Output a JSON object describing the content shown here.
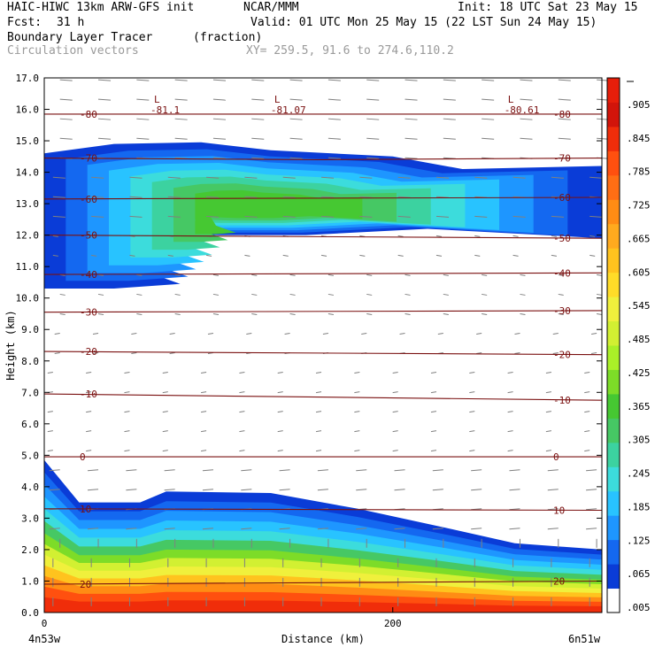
{
  "header": {
    "model": "HAIC-HIWC 13km ARW-GFS init",
    "org": "NCAR/MMM",
    "init": "Init: 18 UTC Sat 23 May 15",
    "fcst_label": "Fcst:",
    "fcst_value": "31 h",
    "valid": "Valid: 01 UTC Mon 25 May 15 (22 LST Sun 24 May 15)",
    "field_name": "Boundary Layer Tracer",
    "field_units": "(fraction)",
    "vector_label": "Circulation vectors",
    "xy_label": "XY= 259.5, 91.6 to 274.6,110.2"
  },
  "colors": {
    "contour_line": "#7a1010",
    "vectors": "#808080",
    "frame": "#000000"
  },
  "chart_data": {
    "type": "heatmap",
    "ylabel": "Height (km)",
    "xlabel": "Distance (km)",
    "x_endpoints": [
      "4n53w",
      "6n51w"
    ],
    "x_range": [
      0,
      320
    ],
    "x_ticks": [
      0,
      200
    ],
    "x_tick_labels": [
      "0",
      "200"
    ],
    "y_range": [
      0,
      17
    ],
    "y_ticks": [
      "0.0",
      "1.0",
      "2.0",
      "3.0",
      "4.0",
      "5.0",
      "6.0",
      "7.0",
      "8.0",
      "9.0",
      "10.0",
      "11.0",
      "12.0",
      "13.0",
      "14.0",
      "15.0",
      "16.0",
      "17.0"
    ],
    "colorbar_labels": [
      ".005",
      ".065",
      ".125",
      ".185",
      ".245",
      ".305",
      ".365",
      ".425",
      ".485",
      ".545",
      ".605",
      ".665",
      ".725",
      ".785",
      ".845",
      ".905"
    ],
    "colorbar_colors": [
      "#ffffff",
      "#0a3cd7",
      "#1468f0",
      "#1e96ff",
      "#28c3ff",
      "#3cdcdc",
      "#3cd2a0",
      "#46c864",
      "#46c832",
      "#7ddc28",
      "#aaf028",
      "#d2f032",
      "#f0f03c",
      "#ffdc28",
      "#ffc31e",
      "#ffaa1e",
      "#ff8c14",
      "#ff6e14",
      "#ff500f",
      "#f02d0a",
      "#d2140a",
      "#e61e0a"
    ],
    "series": [
      {
        "name": "-80",
        "values": [
          [
            0,
            15.85
          ],
          [
            320,
            15.85
          ]
        ]
      },
      {
        "name": "-70",
        "values": [
          [
            0,
            14.45
          ],
          [
            160,
            14.4
          ],
          [
            320,
            14.45
          ]
        ]
      },
      {
        "name": "-60",
        "values": [
          [
            0,
            13.15
          ],
          [
            320,
            13.2
          ]
        ]
      },
      {
        "name": "-50",
        "values": [
          [
            0,
            12.0
          ],
          [
            320,
            11.9
          ]
        ]
      },
      {
        "name": "-40",
        "values": [
          [
            0,
            10.75
          ],
          [
            320,
            10.8
          ]
        ]
      },
      {
        "name": "-30",
        "values": [
          [
            0,
            9.55
          ],
          [
            320,
            9.6
          ]
        ]
      },
      {
        "name": "-20",
        "values": [
          [
            0,
            8.3
          ],
          [
            320,
            8.2
          ]
        ]
      },
      {
        "name": "-10",
        "values": [
          [
            0,
            6.95
          ],
          [
            320,
            6.75
          ]
        ]
      },
      {
        "name": "0",
        "values": [
          [
            0,
            4.95
          ],
          [
            320,
            4.95
          ]
        ]
      },
      {
        "name": "10",
        "values": [
          [
            0,
            3.3
          ],
          [
            320,
            3.25
          ]
        ]
      },
      {
        "name": "20",
        "values": [
          [
            0,
            0.9
          ],
          [
            320,
            1.0
          ]
        ]
      }
    ],
    "lows": [
      {
        "label": "L",
        "value": "-81.1",
        "x": 63,
        "y": 16.05
      },
      {
        "label": "L",
        "value": "-81.07",
        "x": 132,
        "y": 16.05
      },
      {
        "label": "L",
        "value": "-80.61",
        "x": 266,
        "y": 16.05
      }
    ],
    "tracer_fraction_region_upper": {
      "top_km": [
        [
          0,
          14.6
        ],
        [
          40,
          14.9
        ],
        [
          90,
          14.95
        ],
        [
          130,
          14.7
        ],
        [
          200,
          14.5
        ],
        [
          240,
          14.1
        ],
        [
          320,
          14.2
        ]
      ],
      "bottom_km": [
        [
          0,
          10.3
        ],
        [
          40,
          10.3
        ],
        [
          78,
          10.45
        ],
        [
          40,
          11.2
        ],
        [
          30,
          12.1
        ],
        [
          80,
          12.0
        ],
        [
          150,
          12.0
        ],
        [
          220,
          12.2
        ],
        [
          320,
          11.9
        ]
      ],
      "core_fraction": 0.305
    },
    "tracer_fraction_region_lower": {
      "top_km": [
        [
          0,
          4.85
        ],
        [
          20,
          3.5
        ],
        [
          55,
          3.5
        ],
        [
          70,
          3.85
        ],
        [
          130,
          3.8
        ],
        [
          180,
          3.3
        ],
        [
          230,
          2.7
        ],
        [
          270,
          2.2
        ],
        [
          320,
          2.0
        ]
      ],
      "surface_fraction": 0.905
    }
  }
}
